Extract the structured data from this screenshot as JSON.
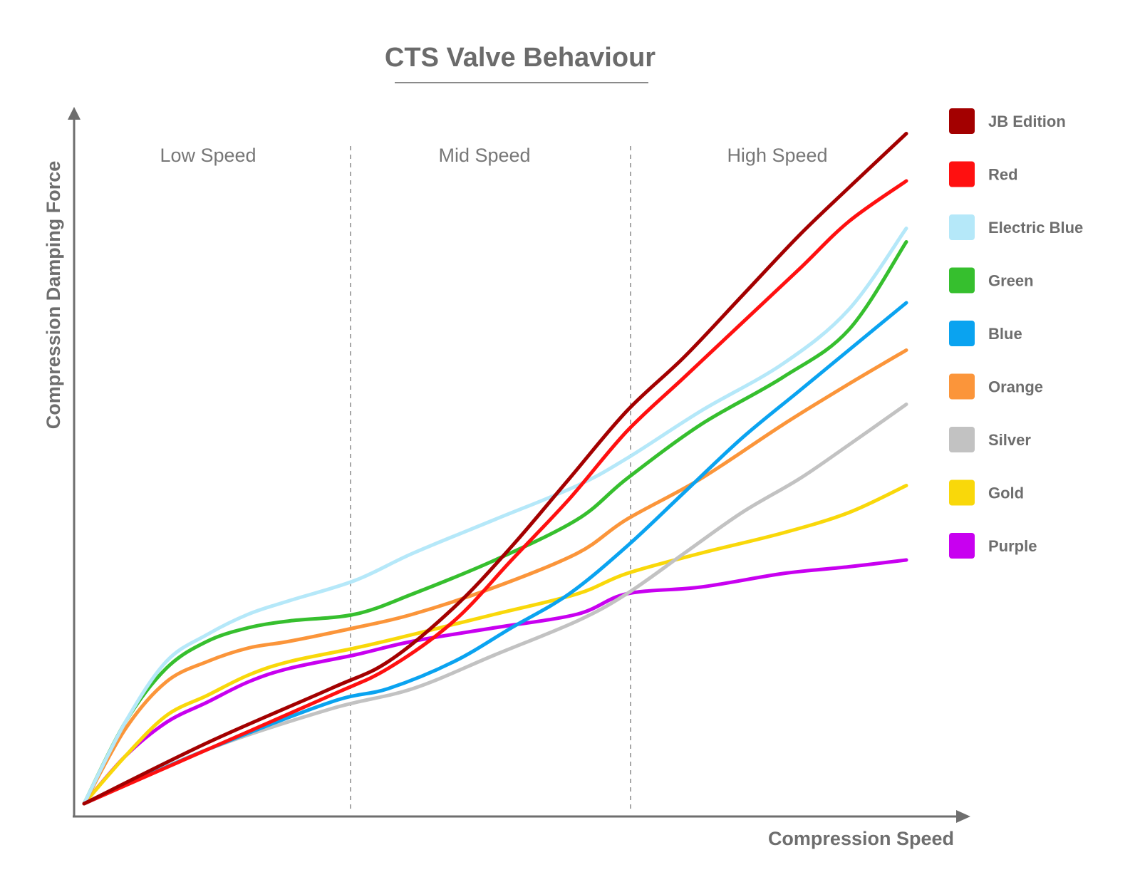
{
  "chart_data": {
    "type": "line",
    "title": "CTS Valve Behaviour",
    "xlabel": "Compression Speed",
    "ylabel": "Compression Damping Force",
    "regions": [
      "Low Speed",
      "Mid Speed",
      "High Speed"
    ],
    "region_boundaries": [
      0.33,
      0.66
    ],
    "xlim": [
      0,
      1
    ],
    "ylim": [
      0,
      1
    ],
    "grid": false,
    "legend_position": "right",
    "series": [
      {
        "name": "JB Edition",
        "color": "#a30000",
        "points": [
          [
            0,
            0
          ],
          [
            0.15,
            0.09
          ],
          [
            0.3,
            0.17
          ],
          [
            0.37,
            0.21
          ],
          [
            0.45,
            0.29
          ],
          [
            0.52,
            0.38
          ],
          [
            0.59,
            0.48
          ],
          [
            0.66,
            0.58
          ],
          [
            0.73,
            0.66
          ],
          [
            0.8,
            0.75
          ],
          [
            0.87,
            0.84
          ],
          [
            0.93,
            0.91
          ],
          [
            1.0,
            0.99
          ]
        ]
      },
      {
        "name": "Red",
        "color": "#ff1010",
        "points": [
          [
            0,
            0
          ],
          [
            0.15,
            0.08
          ],
          [
            0.3,
            0.16
          ],
          [
            0.37,
            0.2
          ],
          [
            0.45,
            0.27
          ],
          [
            0.52,
            0.36
          ],
          [
            0.59,
            0.45
          ],
          [
            0.66,
            0.55
          ],
          [
            0.73,
            0.63
          ],
          [
            0.8,
            0.71
          ],
          [
            0.87,
            0.79
          ],
          [
            0.93,
            0.86
          ],
          [
            1.0,
            0.92
          ]
        ]
      },
      {
        "name": "Electric Blue",
        "color": "#b5e8f9",
        "points": [
          [
            0,
            0
          ],
          [
            0.05,
            0.12
          ],
          [
            0.1,
            0.21
          ],
          [
            0.15,
            0.25
          ],
          [
            0.2,
            0.28
          ],
          [
            0.25,
            0.3
          ],
          [
            0.33,
            0.33
          ],
          [
            0.4,
            0.37
          ],
          [
            0.5,
            0.42
          ],
          [
            0.6,
            0.47
          ],
          [
            0.66,
            0.51
          ],
          [
            0.75,
            0.58
          ],
          [
            0.85,
            0.65
          ],
          [
            0.93,
            0.73
          ],
          [
            1.0,
            0.85
          ]
        ]
      },
      {
        "name": "Green",
        "color": "#36bf2e",
        "points": [
          [
            0,
            0
          ],
          [
            0.05,
            0.12
          ],
          [
            0.1,
            0.2
          ],
          [
            0.15,
            0.24
          ],
          [
            0.2,
            0.26
          ],
          [
            0.25,
            0.27
          ],
          [
            0.33,
            0.28
          ],
          [
            0.4,
            0.31
          ],
          [
            0.5,
            0.36
          ],
          [
            0.6,
            0.42
          ],
          [
            0.66,
            0.48
          ],
          [
            0.75,
            0.56
          ],
          [
            0.85,
            0.63
          ],
          [
            0.93,
            0.7
          ],
          [
            1.0,
            0.83
          ]
        ]
      },
      {
        "name": "Blue",
        "color": "#0aa3f0",
        "points": [
          [
            0,
            0
          ],
          [
            0.15,
            0.08
          ],
          [
            0.3,
            0.15
          ],
          [
            0.37,
            0.17
          ],
          [
            0.45,
            0.21
          ],
          [
            0.52,
            0.26
          ],
          [
            0.59,
            0.31
          ],
          [
            0.66,
            0.38
          ],
          [
            0.73,
            0.46
          ],
          [
            0.8,
            0.54
          ],
          [
            0.87,
            0.61
          ],
          [
            0.93,
            0.67
          ],
          [
            1.0,
            0.74
          ]
        ]
      },
      {
        "name": "Orange",
        "color": "#fb953a",
        "points": [
          [
            0,
            0
          ],
          [
            0.05,
            0.11
          ],
          [
            0.1,
            0.18
          ],
          [
            0.15,
            0.21
          ],
          [
            0.2,
            0.23
          ],
          [
            0.25,
            0.24
          ],
          [
            0.33,
            0.26
          ],
          [
            0.4,
            0.28
          ],
          [
            0.5,
            0.32
          ],
          [
            0.6,
            0.37
          ],
          [
            0.66,
            0.42
          ],
          [
            0.75,
            0.48
          ],
          [
            0.85,
            0.56
          ],
          [
            0.93,
            0.62
          ],
          [
            1.0,
            0.67
          ]
        ]
      },
      {
        "name": "Silver",
        "color": "#c2c2c2",
        "points": [
          [
            0,
            0
          ],
          [
            0.15,
            0.08
          ],
          [
            0.3,
            0.14
          ],
          [
            0.4,
            0.17
          ],
          [
            0.5,
            0.22
          ],
          [
            0.6,
            0.27
          ],
          [
            0.66,
            0.31
          ],
          [
            0.73,
            0.37
          ],
          [
            0.8,
            0.43
          ],
          [
            0.87,
            0.48
          ],
          [
            0.93,
            0.53
          ],
          [
            1.0,
            0.59
          ]
        ]
      },
      {
        "name": "Gold",
        "color": "#f9d80a",
        "points": [
          [
            0,
            0
          ],
          [
            0.05,
            0.07
          ],
          [
            0.1,
            0.13
          ],
          [
            0.15,
            0.16
          ],
          [
            0.2,
            0.19
          ],
          [
            0.25,
            0.21
          ],
          [
            0.33,
            0.23
          ],
          [
            0.4,
            0.25
          ],
          [
            0.5,
            0.28
          ],
          [
            0.6,
            0.31
          ],
          [
            0.66,
            0.34
          ],
          [
            0.75,
            0.37
          ],
          [
            0.85,
            0.4
          ],
          [
            0.93,
            0.43
          ],
          [
            1.0,
            0.47
          ]
        ]
      },
      {
        "name": "Purple",
        "color": "#c800f0",
        "points": [
          [
            0,
            0
          ],
          [
            0.05,
            0.07
          ],
          [
            0.1,
            0.12
          ],
          [
            0.15,
            0.15
          ],
          [
            0.2,
            0.18
          ],
          [
            0.25,
            0.2
          ],
          [
            0.33,
            0.22
          ],
          [
            0.4,
            0.24
          ],
          [
            0.5,
            0.26
          ],
          [
            0.6,
            0.28
          ],
          [
            0.66,
            0.31
          ],
          [
            0.75,
            0.32
          ],
          [
            0.85,
            0.34
          ],
          [
            0.93,
            0.35
          ],
          [
            1.0,
            0.36
          ]
        ]
      }
    ]
  }
}
